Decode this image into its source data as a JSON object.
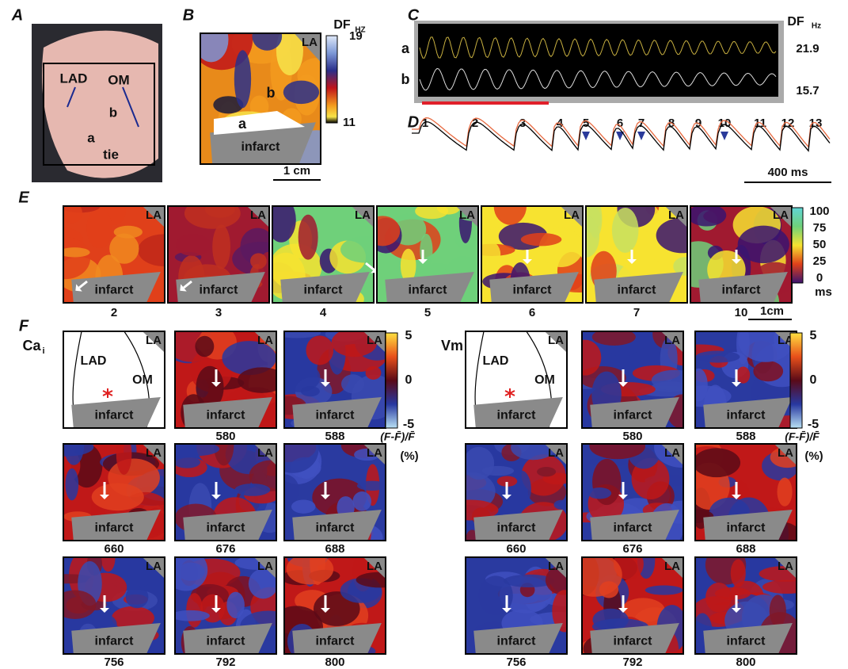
{
  "panel_a": {
    "label": "A",
    "lad": "LAD",
    "om": "OM",
    "site_b": "b",
    "site_a": "a",
    "tie": "tie"
  },
  "panel_b": {
    "label": "B",
    "unit_label": "DF",
    "unit_sub": "HZ",
    "scale_max": "19",
    "scale_min": "11",
    "region_la": "LA",
    "site_b": "b",
    "site_a": "a",
    "infarct": "infarct",
    "scale_bar": "1 cm"
  },
  "panel_c": {
    "label": "C",
    "unit_label": "DF",
    "unit_sub": "Hz",
    "trace_a": "a",
    "trace_b": "b",
    "df_a": "21.9",
    "df_b": "15.7"
  },
  "panel_d": {
    "label": "D",
    "beats": [
      "1",
      "2",
      "3",
      "4",
      "5",
      "6",
      "7",
      "8",
      "9",
      "10",
      "11",
      "12",
      "13"
    ],
    "scale_bar": "400 ms"
  },
  "panel_e": {
    "label": "E",
    "beats": [
      "2",
      "3",
      "4",
      "5",
      "6",
      "7",
      "10"
    ],
    "region_la": "LA",
    "infarct": "infarct",
    "colorbar_ticks": [
      "100",
      "75",
      "50",
      "25",
      "0"
    ],
    "unit": "ms",
    "scale_bar": "1cm"
  },
  "panel_f": {
    "label": "F",
    "region_la": "LA",
    "infarct": "infarct",
    "formula": "(F-F̄)/F̄",
    "unit": "(%)",
    "colorbar_ticks": [
      "5",
      "0",
      "-5"
    ],
    "cai": {
      "title": "Ca",
      "title_sub": "i",
      "lad": "LAD",
      "om": "OM",
      "times": [
        "580",
        "588",
        "660",
        "676",
        "688",
        "756",
        "792",
        "800"
      ]
    },
    "vm": {
      "title": "Vm",
      "lad": "LAD",
      "om": "OM",
      "times": [
        "580",
        "588",
        "660",
        "676",
        "688",
        "756",
        "792",
        "800"
      ]
    }
  }
}
